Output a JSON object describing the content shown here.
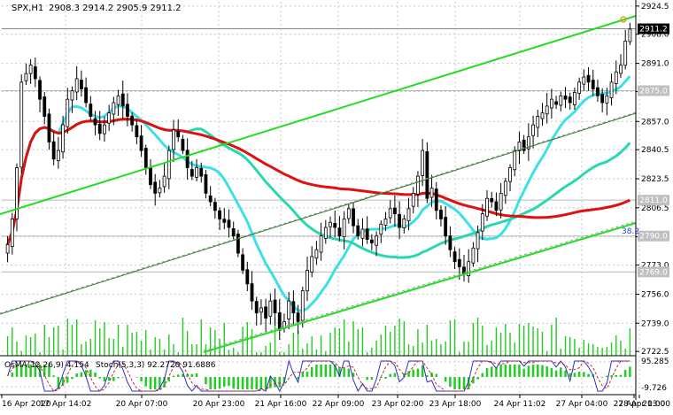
{
  "header": {
    "symbol": "SPX,H1",
    "ohlc": "2908.3 2914.2 2905.9 2911.2"
  },
  "indicators": {
    "osma_label": "OsMA(12,26,9) 4.154",
    "stoch_label": "Stoch(5,3,3) 92.2720 91.6886"
  },
  "fib_label": "38.2",
  "colors": {
    "background": "#ffffff",
    "grid": "#c8c8c8",
    "candle": "#000000",
    "channel": "#22dd22",
    "ma_fast": "#3ee0e8",
    "ma_mid": "#2ad8b0",
    "ma_slow": "#e01010",
    "volume": "#22cc22",
    "osma": "#22cc22",
    "stoch_main": "#3030c0",
    "stoch_signal": "#c03030"
  },
  "chart_data": {
    "type": "candlestick",
    "title": "SPX,H1",
    "ylim": [
      2720,
      2927
    ],
    "price_ticks": [
      "2924.5",
      "2908.0",
      "2891.0",
      "2874.5",
      "2857.0",
      "2840.5",
      "2823.5",
      "2806.5",
      "2789.5",
      "2773.0",
      "2756.0",
      "2739.0",
      "2722.5"
    ],
    "price_boxes": [
      {
        "label": "2911.2",
        "value": 2911.2,
        "style": "current"
      },
      {
        "label": "2875.0",
        "value": 2875.0,
        "style": "level"
      },
      {
        "label": "2811.0",
        "value": 2811.0,
        "style": "level"
      },
      {
        "label": "2790.0",
        "value": 2790.0,
        "style": "level"
      },
      {
        "label": "2769.0",
        "value": 2769.0,
        "style": "level"
      }
    ],
    "x_labels": [
      "16 Apr 2020",
      "17 Apr 14:02",
      "20 Apr 07:00",
      "20 Apr 23:00",
      "21 Apr 16:00",
      "22 Apr 09:00",
      "23 Apr 02:00",
      "23 Apr 18:00",
      "24 Apr 11:02",
      "27 Apr 04:00",
      "27 Apr 20:00",
      "28 Apr 13:00"
    ],
    "closes": [
      2785,
      2800,
      2830,
      2880,
      2885,
      2890,
      2882,
      2870,
      2860,
      2845,
      2835,
      2840,
      2855,
      2870,
      2875,
      2882,
      2876,
      2868,
      2860,
      2855,
      2850,
      2855,
      2862,
      2868,
      2872,
      2866,
      2860,
      2855,
      2848,
      2840,
      2830,
      2820,
      2815,
      2818,
      2825,
      2840,
      2852,
      2848,
      2840,
      2830,
      2825,
      2830,
      2825,
      2815,
      2810,
      2805,
      2800,
      2798,
      2795,
      2790,
      2780,
      2770,
      2762,
      2752,
      2745,
      2748,
      2742,
      2752,
      2745,
      2735,
      2740,
      2752,
      2745,
      2740,
      2758,
      2770,
      2778,
      2782,
      2790,
      2795,
      2798,
      2795,
      2790,
      2800,
      2806,
      2796,
      2790,
      2794,
      2788,
      2786,
      2790,
      2797,
      2800,
      2806,
      2803,
      2795,
      2800,
      2806,
      2815,
      2825,
      2840,
      2812,
      2818,
      2805,
      2800,
      2790,
      2782,
      2775,
      2772,
      2768,
      2775,
      2783,
      2792,
      2803,
      2812,
      2810,
      2805,
      2815,
      2822,
      2830,
      2840,
      2845,
      2840,
      2848,
      2855,
      2860,
      2862,
      2866,
      2870,
      2867,
      2872,
      2870,
      2868,
      2874,
      2880,
      2883,
      2880,
      2876,
      2872,
      2868,
      2872,
      2880,
      2886,
      2890,
      2904,
      2911
    ],
    "series": [
      {
        "name": "MA fast",
        "color": "#3ee0e8"
      },
      {
        "name": "MA medium",
        "color": "#2ad8b0"
      },
      {
        "name": "MA slow",
        "color": "#e01010"
      }
    ],
    "osma_ticks": [
      "95.285",
      "-9.726"
    ]
  }
}
